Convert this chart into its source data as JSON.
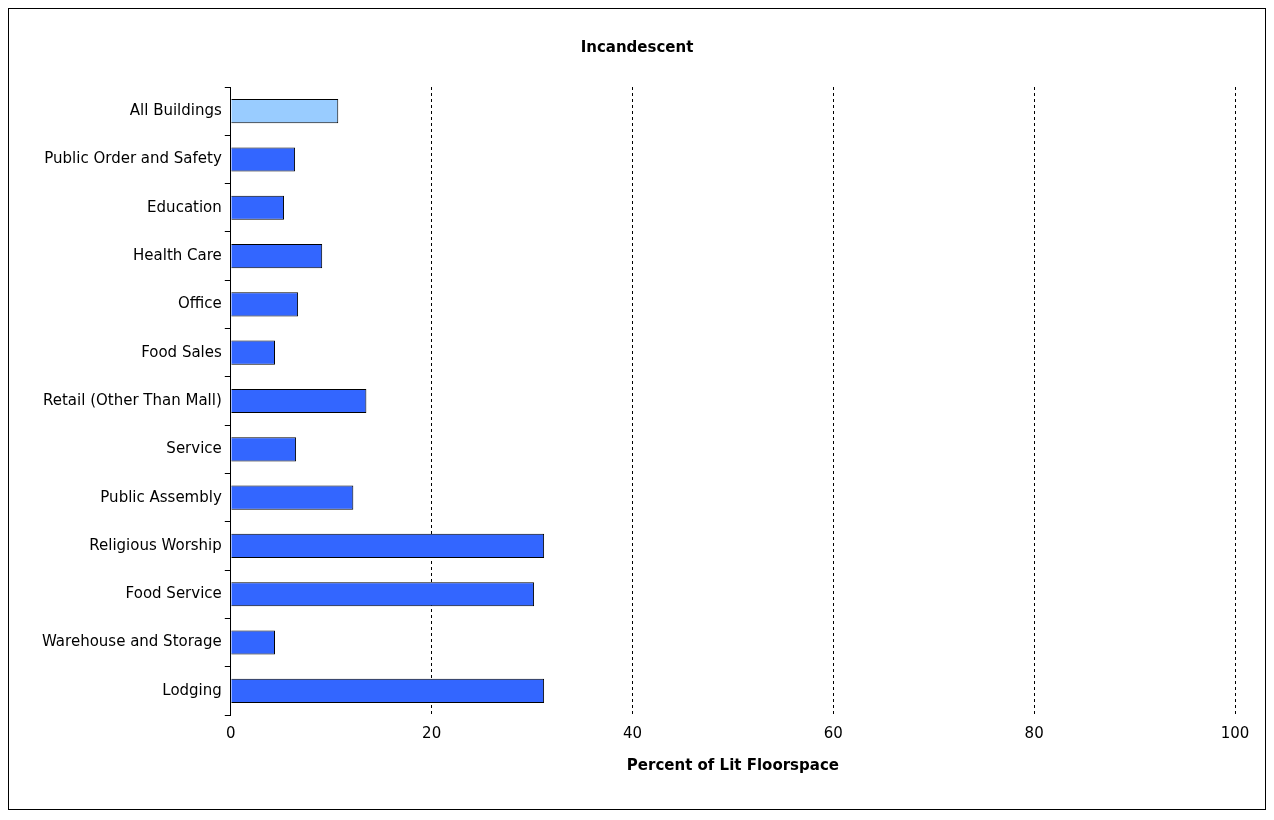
{
  "chart_data": {
    "type": "bar",
    "orientation": "horizontal",
    "title": "Incandescent",
    "xlabel": "Percent of Lit Floorspace",
    "categories": [
      "All Buildings",
      "Public Order and Safety",
      "Education",
      "Health Care",
      "Office",
      "Food Sales",
      "Retail (Other Than Mall)",
      "Service",
      "Public Assembly",
      "Religious Worship",
      "Food Service",
      "Warehouse and Storage",
      "Lodging"
    ],
    "values": [
      10.7,
      6.4,
      5.3,
      9.1,
      6.7,
      4.4,
      13.5,
      6.5,
      12.2,
      31.2,
      30.2,
      4.4,
      31.2
    ],
    "colors": [
      "#99ccff",
      "#3366ff",
      "#3366ff",
      "#3366ff",
      "#3366ff",
      "#3366ff",
      "#3366ff",
      "#3366ff",
      "#3366ff",
      "#3366ff",
      "#3366ff",
      "#3366ff",
      "#3366ff"
    ],
    "xlim": [
      0,
      100
    ],
    "xticks": [
      0,
      20,
      40,
      60,
      80,
      100
    ],
    "grid": "x",
    "legend": false
  }
}
